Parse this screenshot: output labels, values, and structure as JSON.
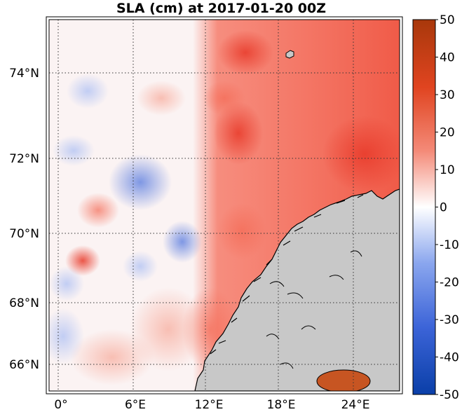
{
  "title": "SLA (cm) at 2017-01-20 00Z",
  "map": {
    "lat_labels": [
      "74°N",
      "72°N",
      "70°N",
      "68°N",
      "66°N"
    ],
    "lon_labels": [
      "0°",
      "6°E",
      "12°E",
      "18°E",
      "24°E"
    ],
    "lat_values": [
      74,
      72,
      70,
      68,
      66
    ],
    "lon_values": [
      0,
      6,
      12,
      18,
      24
    ],
    "land_color": "#c8c8c8"
  },
  "colorbar": {
    "ticks": [
      "50",
      "40",
      "30",
      "20",
      "10",
      "0",
      "-10",
      "-20",
      "-30",
      "-40",
      "-50"
    ],
    "range": [
      -50,
      50
    ],
    "colors": {
      "min": "#0a3fa8",
      "mid": "#ffffff",
      "max": "#b23a0c"
    }
  }
}
